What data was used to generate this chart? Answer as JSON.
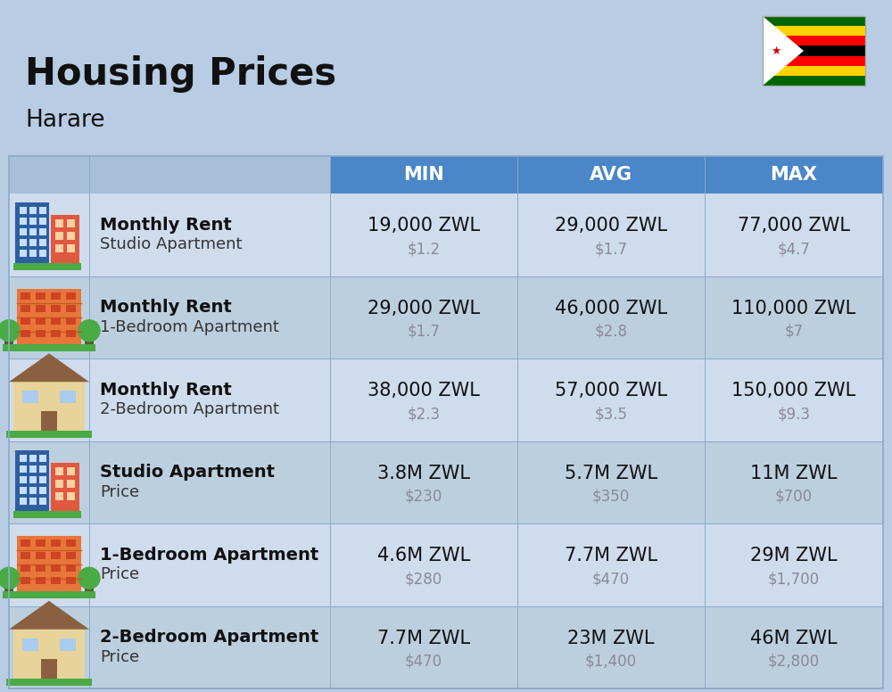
{
  "title": "Housing Prices",
  "subtitle": "Harare",
  "bg_color": "#b8cce4",
  "header_bg": "#4a86c8",
  "header_text_color": "#ffffff",
  "row_bg_odd": "#cfdced",
  "row_bg_even": "#bccfdf",
  "columns": [
    "MIN",
    "AVG",
    "MAX"
  ],
  "rows": [
    {
      "icon_type": "blue_tower",
      "bold_label": "Monthly Rent",
      "sub_label": "Studio Apartment",
      "min_main": "19,000 ZWL",
      "min_sub": "$1.2",
      "avg_main": "29,000 ZWL",
      "avg_sub": "$1.7",
      "max_main": "77,000 ZWL",
      "max_sub": "$4.7"
    },
    {
      "icon_type": "orange_apartment",
      "bold_label": "Monthly Rent",
      "sub_label": "1-Bedroom Apartment",
      "min_main": "29,000 ZWL",
      "min_sub": "$1.7",
      "avg_main": "46,000 ZWL",
      "avg_sub": "$2.8",
      "max_main": "110,000 ZWL",
      "max_sub": "$7"
    },
    {
      "icon_type": "tan_house",
      "bold_label": "Monthly Rent",
      "sub_label": "2-Bedroom Apartment",
      "min_main": "38,000 ZWL",
      "min_sub": "$2.3",
      "avg_main": "57,000 ZWL",
      "avg_sub": "$3.5",
      "max_main": "150,000 ZWL",
      "max_sub": "$9.3"
    },
    {
      "icon_type": "blue_tower",
      "bold_label": "Studio Apartment",
      "sub_label": "Price",
      "min_main": "3.8M ZWL",
      "min_sub": "$230",
      "avg_main": "5.7M ZWL",
      "avg_sub": "$350",
      "max_main": "11M ZWL",
      "max_sub": "$700"
    },
    {
      "icon_type": "orange_apartment",
      "bold_label": "1-Bedroom Apartment",
      "sub_label": "Price",
      "min_main": "4.6M ZWL",
      "min_sub": "$280",
      "avg_main": "7.7M ZWL",
      "avg_sub": "$470",
      "max_main": "29M ZWL",
      "max_sub": "$1,700"
    },
    {
      "icon_type": "tan_house",
      "bold_label": "2-Bedroom Apartment",
      "sub_label": "Price",
      "min_main": "7.7M ZWL",
      "min_sub": "$470",
      "avg_main": "23M ZWL",
      "avg_sub": "$1,400",
      "max_main": "46M ZWL",
      "max_sub": "$2,800"
    }
  ],
  "flag_stripes": [
    "#006400",
    "#FFD200",
    "#FF0000",
    "#000000",
    "#FF0000",
    "#FFD200",
    "#006400"
  ]
}
